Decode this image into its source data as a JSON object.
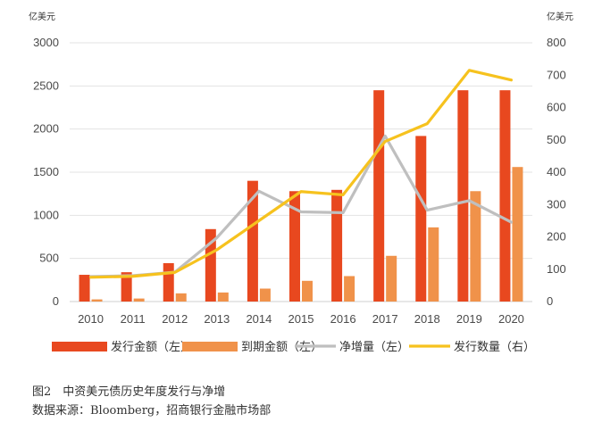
{
  "chart_data": {
    "type": "bar",
    "categories": [
      "2010",
      "2011",
      "2012",
      "2013",
      "2014",
      "2015",
      "2016",
      "2017",
      "2018",
      "2019",
      "2020"
    ],
    "left_axis": {
      "unit_label": "亿美元",
      "ylim": [
        0,
        3000
      ],
      "ticks": [
        0,
        500,
        1000,
        1500,
        2000,
        2500,
        3000
      ]
    },
    "right_axis": {
      "unit_label": "亿美元",
      "ylim": [
        0,
        800
      ],
      "ticks": [
        0,
        100,
        200,
        300,
        400,
        500,
        600,
        700,
        800
      ]
    },
    "series": [
      {
        "name": "发行金额（左）",
        "kind": "bar",
        "axis": "left",
        "color": "#e8481f",
        "values": [
          310,
          340,
          445,
          840,
          1400,
          1280,
          1295,
          2450,
          1920,
          2450,
          2450
        ]
      },
      {
        "name": "到期金额（左）",
        "kind": "bar",
        "axis": "left",
        "color": "#f0924a",
        "values": [
          25,
          35,
          95,
          105,
          150,
          240,
          295,
          530,
          860,
          1280,
          1560
        ]
      },
      {
        "name": "净增量（左）",
        "kind": "line",
        "axis": "left",
        "color": "#bfbfbf",
        "values": [
          290,
          300,
          340,
          740,
          1280,
          1040,
          1030,
          1920,
          1060,
          1170,
          920
        ]
      },
      {
        "name": "发行数量（右）",
        "kind": "line",
        "axis": "right",
        "color": "#f6c21e",
        "values": [
          75,
          78,
          90,
          160,
          250,
          340,
          330,
          495,
          550,
          715,
          685
        ]
      }
    ],
    "grid": true,
    "legend_position": "bottom"
  },
  "caption": {
    "title": "图2　中资美元债历史年度发行与净增",
    "source": "数据来源：Bloomberg，招商银行金融市场部"
  }
}
